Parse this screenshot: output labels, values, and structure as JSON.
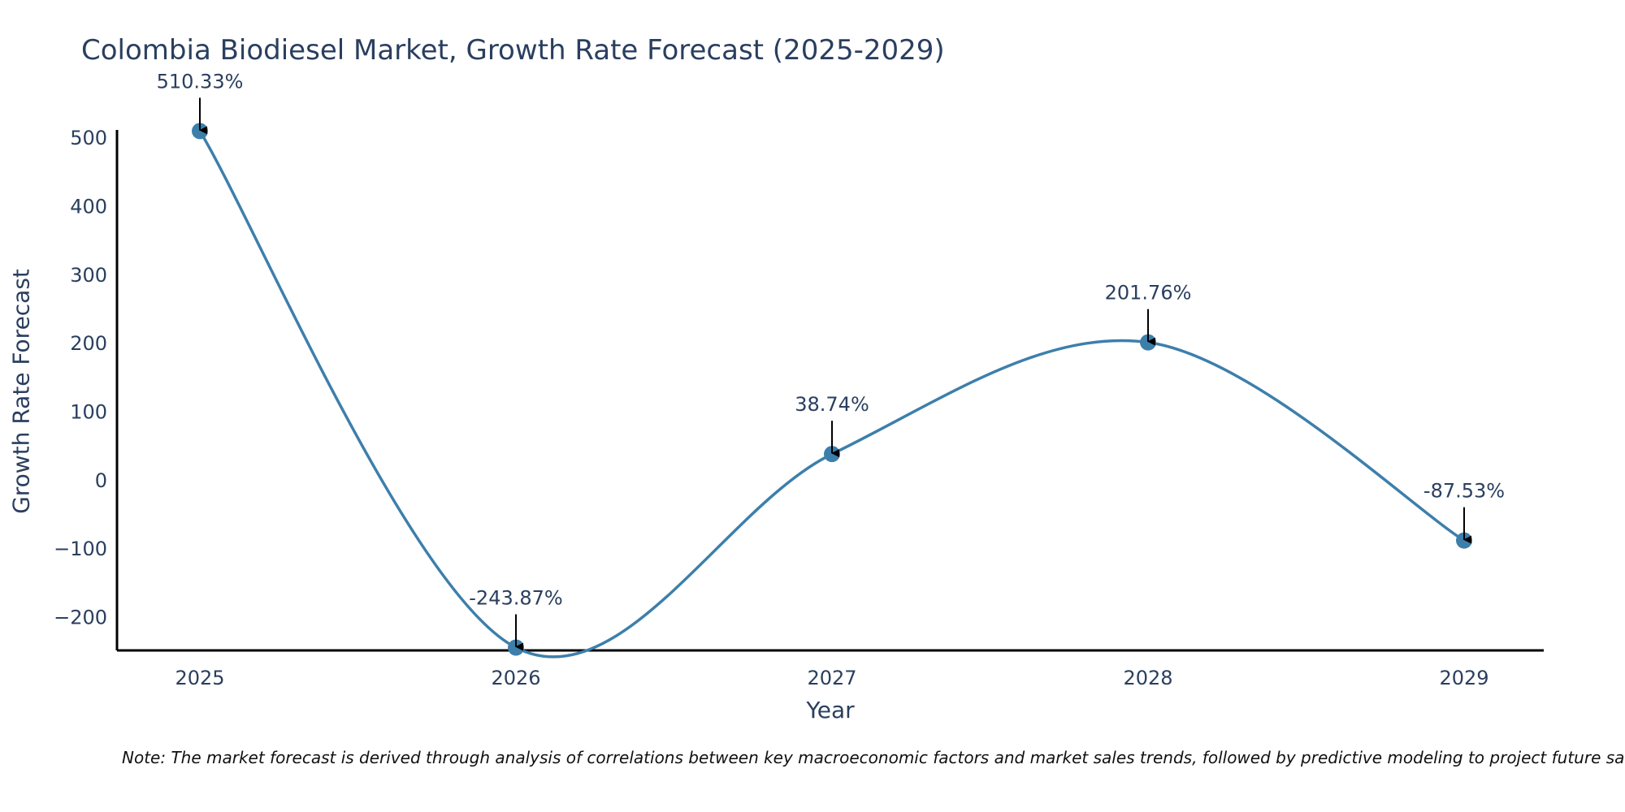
{
  "chart_data": {
    "type": "line",
    "title": "Colombia Biodiesel Market, Growth Rate Forecast (2025-2029)",
    "xlabel": "Year",
    "ylabel": "Growth Rate Forecast",
    "categories": [
      "2025",
      "2026",
      "2027",
      "2028",
      "2029"
    ],
    "series": [
      {
        "name": "Growth Rate Forecast",
        "values": [
          510.33,
          -243.87,
          38.74,
          201.76,
          -87.53
        ]
      }
    ],
    "data_labels": [
      "510.33%",
      "-243.87%",
      "38.74%",
      "201.76%",
      "-87.53%"
    ],
    "yticks": [
      -200,
      -100,
      0,
      100,
      200,
      300,
      400,
      500
    ],
    "ytick_labels": [
      "−200",
      "−100",
      "0",
      "100",
      "200",
      "300",
      "400",
      "500"
    ],
    "ylim": [
      -248,
      512
    ],
    "line_shape": "spline",
    "grid": false,
    "legend": "none"
  },
  "note": "Note: The market forecast is derived through analysis of correlations between key macroeconomic factors and market sales trends, followed by predictive modeling to project future sales.",
  "colors": {
    "line": "#3d7fab",
    "marker": "#3d7fab",
    "axis": "#000000",
    "text": "#2a3f5f"
  }
}
